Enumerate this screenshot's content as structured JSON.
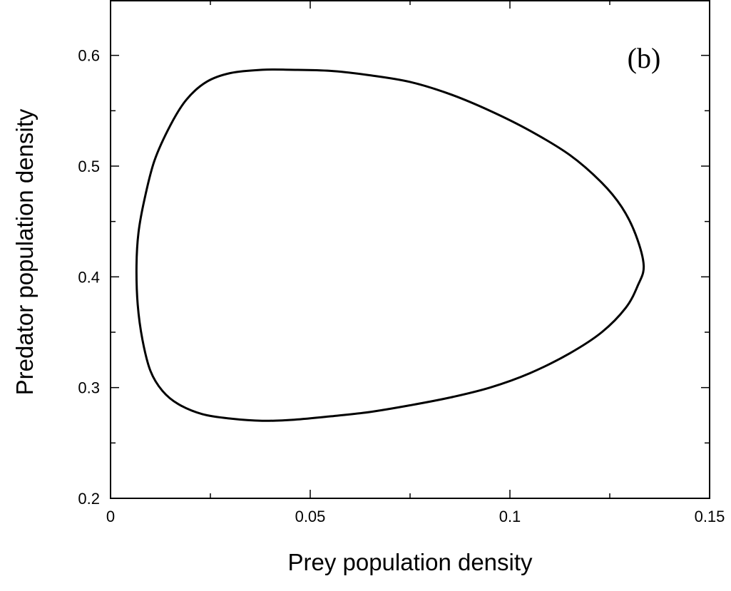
{
  "chart_data": {
    "type": "line",
    "xlabel": "Prey population density",
    "ylabel": "Predator population density",
    "annotation": "(b)",
    "xlim": [
      0,
      0.15
    ],
    "ylim": [
      0.2,
      0.65
    ],
    "x_ticks": [
      0,
      0.05,
      0.1,
      0.15
    ],
    "x_tick_labels": [
      "0",
      "0.05",
      "0.1",
      "0.15"
    ],
    "x_minor_ticks": [
      0.025,
      0.075,
      0.125
    ],
    "y_ticks": [
      0.2,
      0.3,
      0.4,
      0.5,
      0.6
    ],
    "y_tick_labels": [
      "0.2",
      "0.3",
      "0.4",
      "0.5",
      "0.6"
    ],
    "y_minor_ticks": [
      0.25,
      0.35,
      0.45,
      0.55
    ],
    "grid": false,
    "line_color": "#000000",
    "series": [
      {
        "closed": true,
        "points": [
          [
            0.1335,
            0.41
          ],
          [
            0.1315,
            0.438
          ],
          [
            0.128,
            0.463
          ],
          [
            0.123,
            0.485
          ],
          [
            0.115,
            0.51
          ],
          [
            0.105,
            0.532
          ],
          [
            0.095,
            0.55
          ],
          [
            0.085,
            0.565
          ],
          [
            0.075,
            0.576
          ],
          [
            0.065,
            0.582
          ],
          [
            0.055,
            0.586
          ],
          [
            0.045,
            0.587
          ],
          [
            0.038,
            0.587
          ],
          [
            0.03,
            0.584
          ],
          [
            0.024,
            0.576
          ],
          [
            0.019,
            0.56
          ],
          [
            0.015,
            0.537
          ],
          [
            0.011,
            0.505
          ],
          [
            0.0085,
            0.47
          ],
          [
            0.007,
            0.44
          ],
          [
            0.0065,
            0.41
          ],
          [
            0.0068,
            0.375
          ],
          [
            0.008,
            0.343
          ],
          [
            0.01,
            0.315
          ],
          [
            0.013,
            0.297
          ],
          [
            0.017,
            0.285
          ],
          [
            0.023,
            0.276
          ],
          [
            0.03,
            0.272
          ],
          [
            0.038,
            0.27
          ],
          [
            0.046,
            0.271
          ],
          [
            0.055,
            0.274
          ],
          [
            0.065,
            0.278
          ],
          [
            0.075,
            0.284
          ],
          [
            0.085,
            0.291
          ],
          [
            0.095,
            0.3
          ],
          [
            0.105,
            0.313
          ],
          [
            0.115,
            0.331
          ],
          [
            0.123,
            0.35
          ],
          [
            0.129,
            0.372
          ],
          [
            0.132,
            0.392
          ]
        ]
      }
    ]
  }
}
